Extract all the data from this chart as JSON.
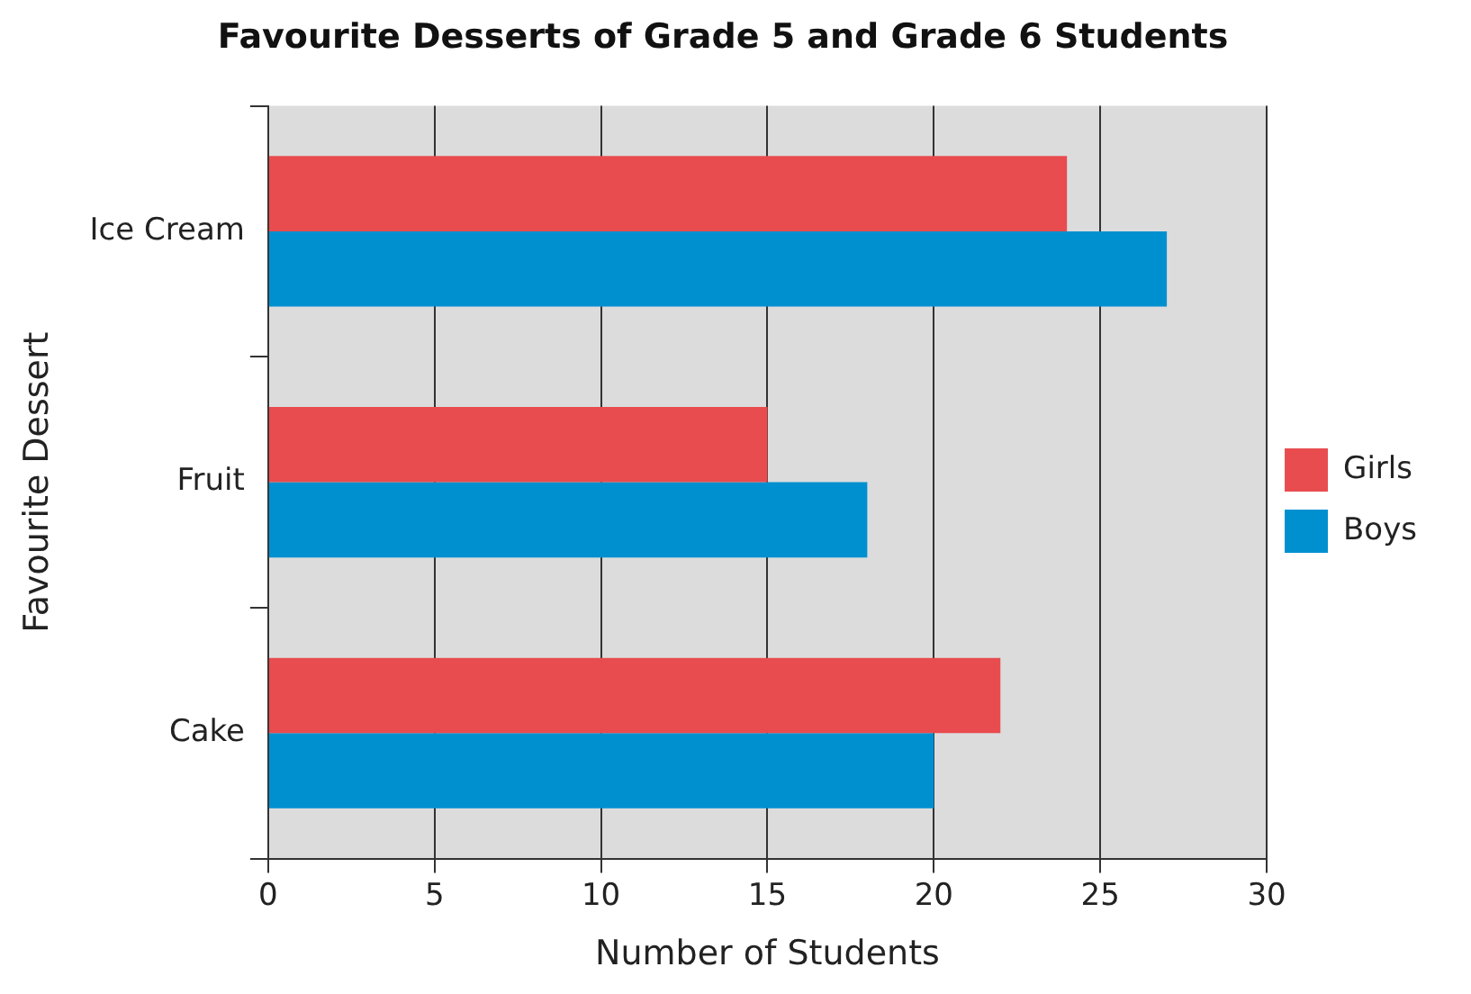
{
  "chart_data": {
    "type": "bar",
    "orientation": "horizontal",
    "title": "Favourite Desserts of Grade 5 and Grade 6 Students",
    "xlabel": "Number of Students",
    "ylabel": "Favourite Dessert",
    "categories": [
      "Ice Cream",
      "Fruit",
      "Cake"
    ],
    "series": [
      {
        "name": "Girls",
        "color": "#e84c4f",
        "values": [
          24,
          15,
          22
        ]
      },
      {
        "name": "Boys",
        "color": "#0090d0",
        "values": [
          27,
          18,
          20
        ]
      }
    ],
    "xlim": [
      0,
      30
    ],
    "xticks": [
      0,
      5,
      10,
      15,
      20,
      25,
      30
    ],
    "grid": "x",
    "legend": "right"
  }
}
